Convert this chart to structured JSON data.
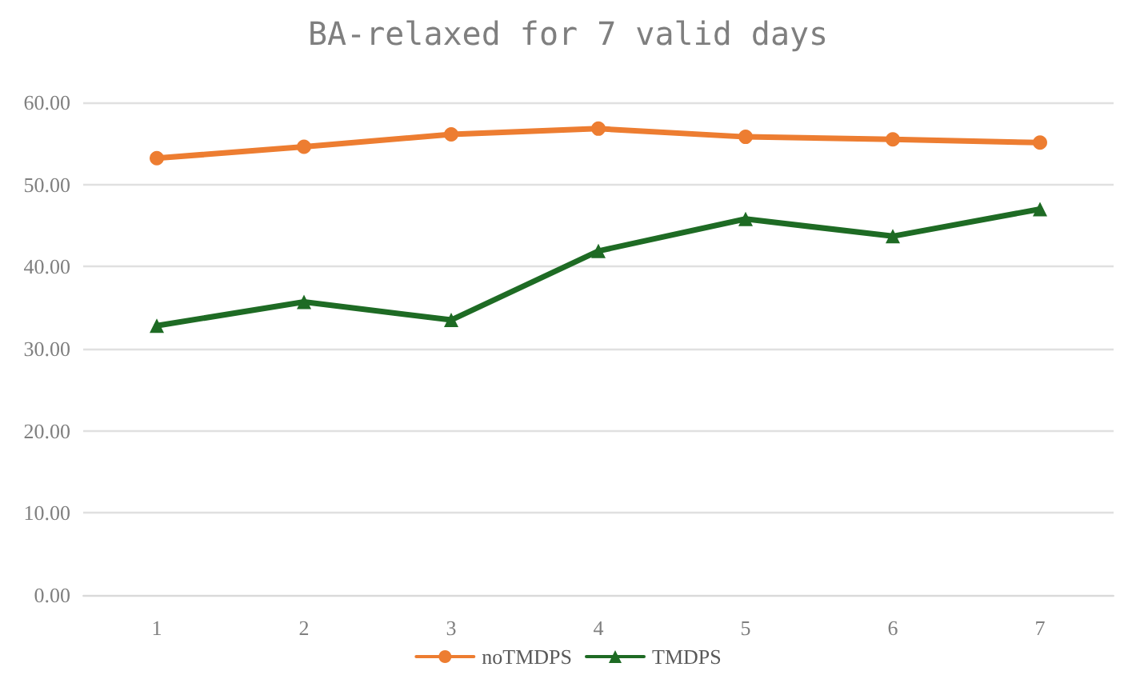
{
  "chart_data": {
    "type": "line",
    "title": "BA-relaxed for 7 valid days",
    "categories": [
      "1",
      "2",
      "3",
      "4",
      "5",
      "6",
      "7"
    ],
    "series": [
      {
        "name": "noTMDPS",
        "color": "#ed7d31",
        "marker": "circle",
        "values": [
          53.2,
          54.6,
          56.1,
          56.8,
          55.8,
          55.5,
          55.1
        ]
      },
      {
        "name": "TMDPS",
        "color": "#1e6b24",
        "marker": "triangle",
        "values": [
          32.8,
          35.7,
          33.5,
          41.9,
          45.8,
          43.7,
          47.0
        ]
      }
    ],
    "ylim": [
      0,
      60
    ],
    "yticks": [
      {
        "value": 0,
        "label": "0.00"
      },
      {
        "value": 10,
        "label": "10.00"
      },
      {
        "value": 20,
        "label": "20.00"
      },
      {
        "value": 30,
        "label": "30.00"
      },
      {
        "value": 40,
        "label": "40.00"
      },
      {
        "value": 50,
        "label": "50.00"
      },
      {
        "value": 60,
        "label": "60.00"
      }
    ],
    "grid": "y",
    "legend": "bottom",
    "line_style": "solid"
  }
}
